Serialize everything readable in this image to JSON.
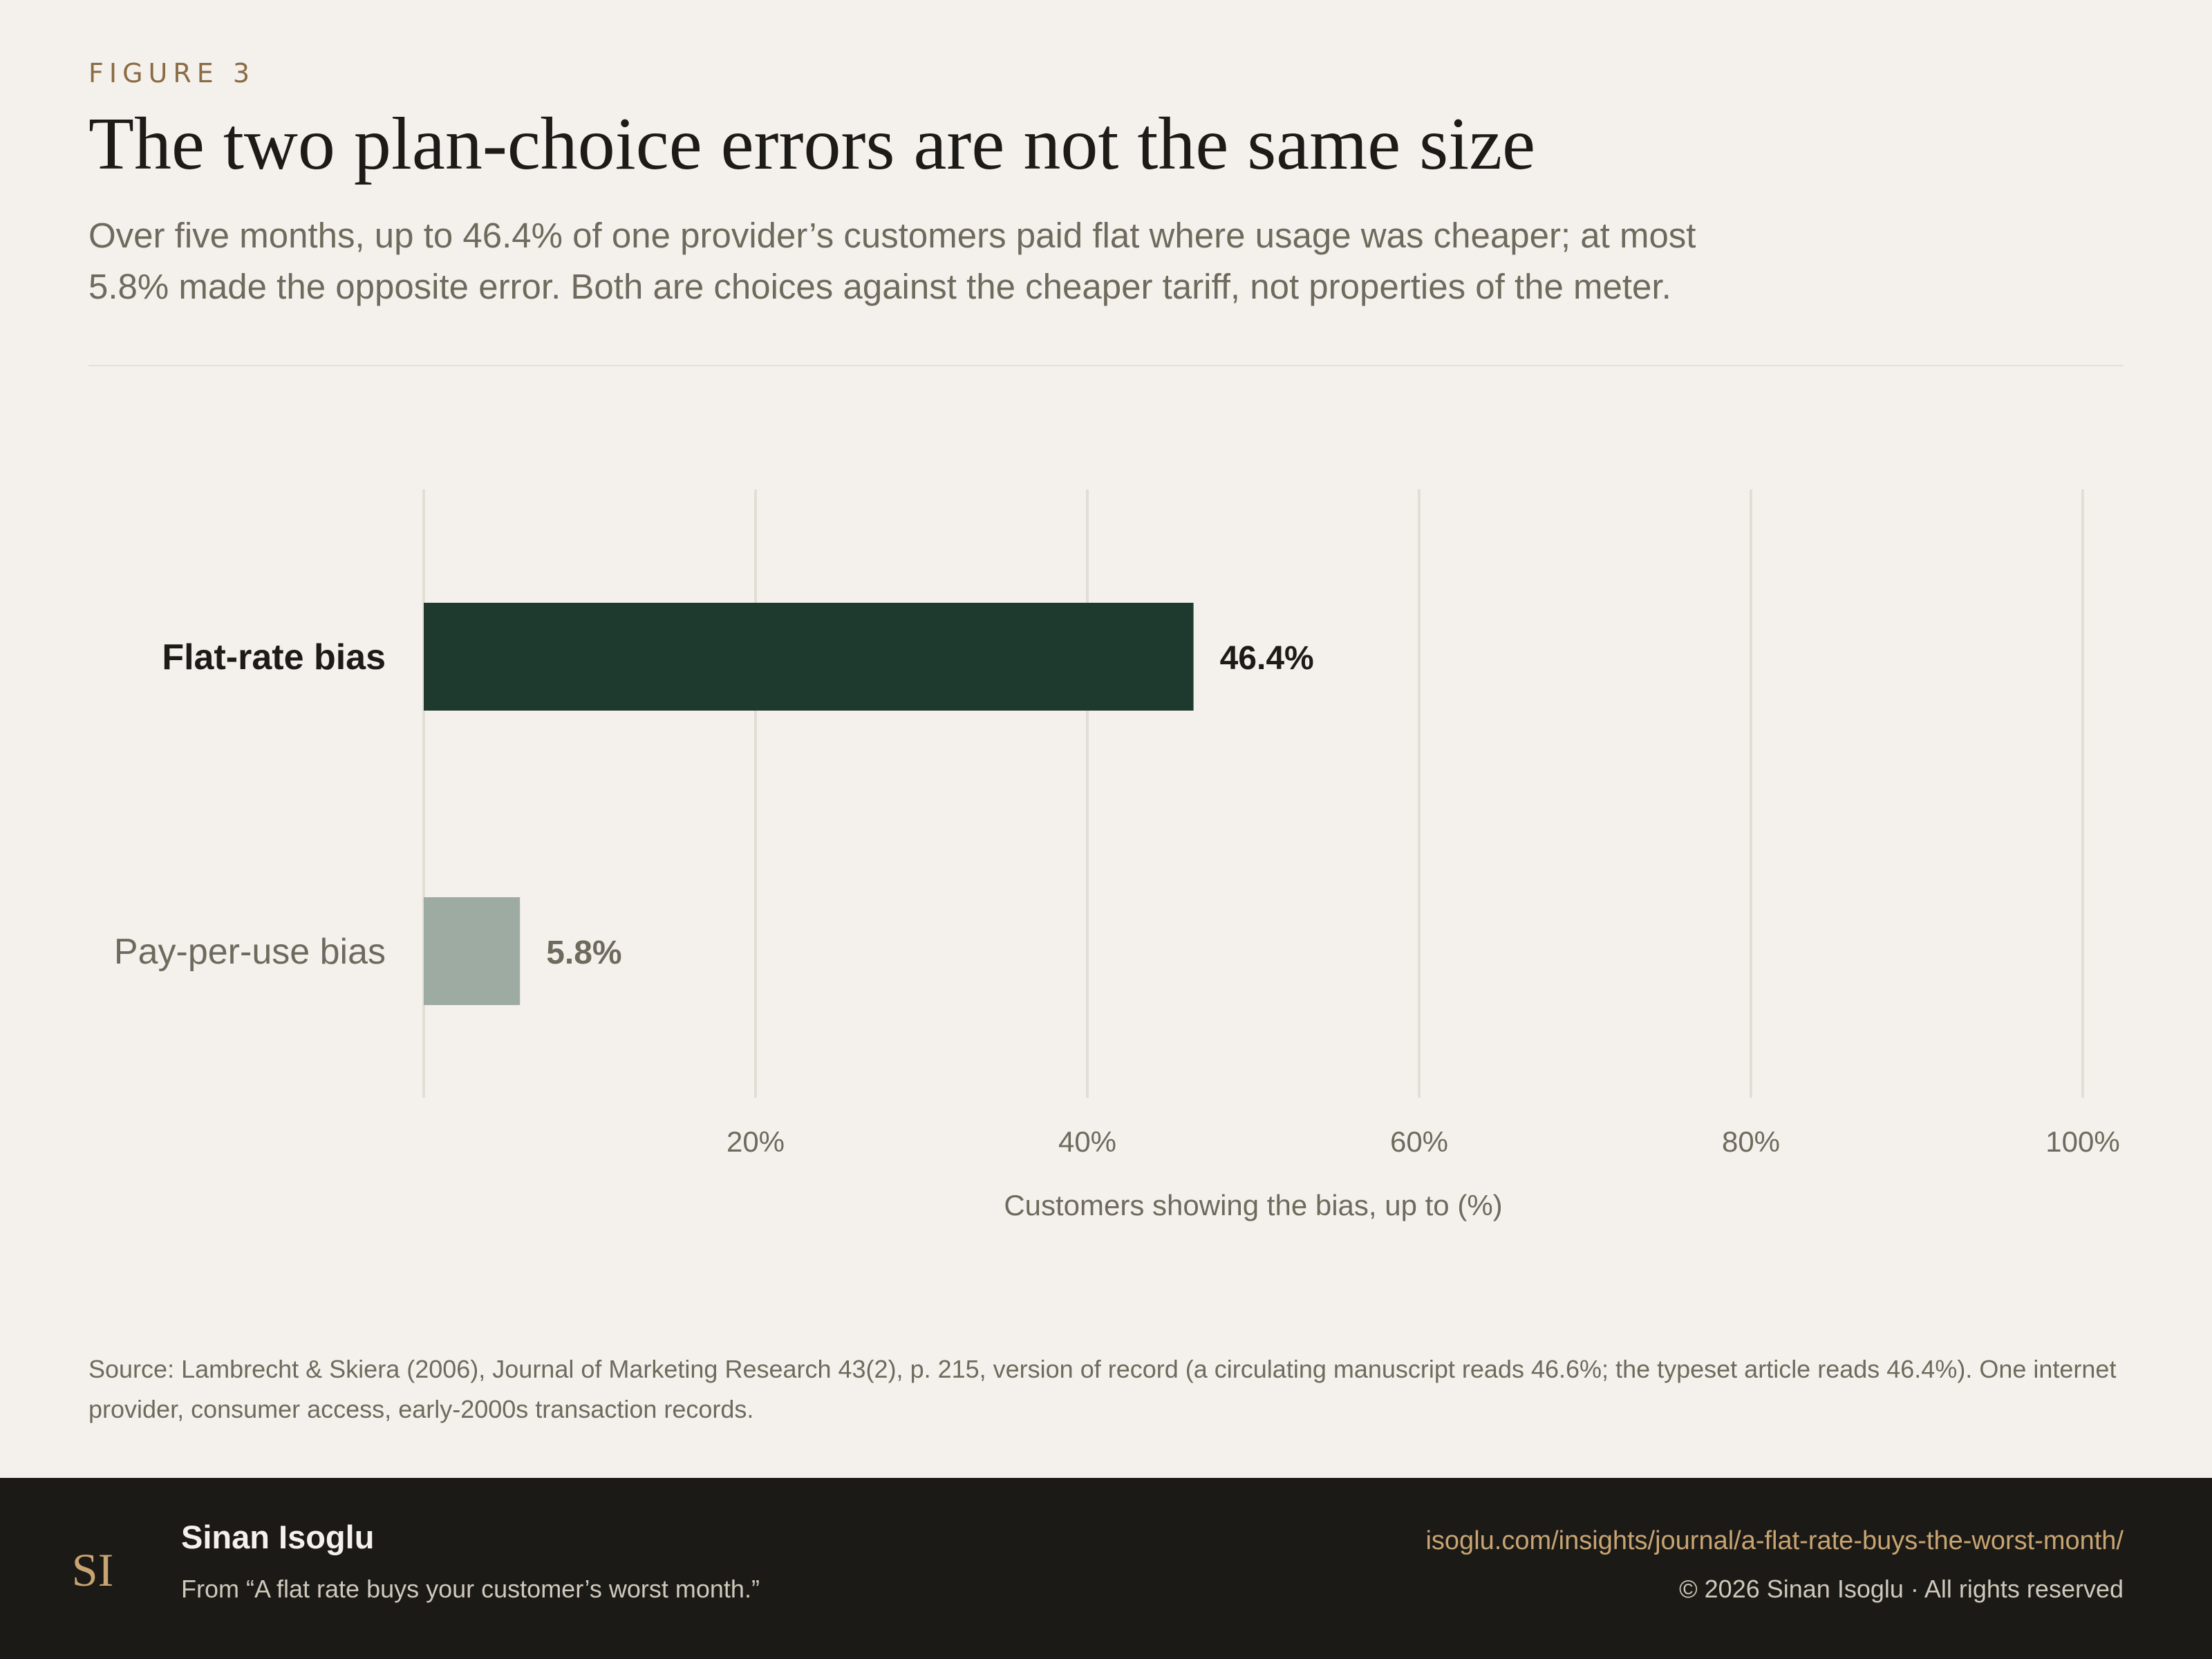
{
  "header": {
    "eyebrow": "FIGURE 3",
    "title": "The two plan-choice errors are not the same size",
    "subtitle": "Over five months, up to 46.4% of one provider’s customers paid flat where usage was cheaper; at most 5.8% made the opposite error. Both are choices against the cheaper tariff, not properties of the meter."
  },
  "chart_data": {
    "type": "bar",
    "orientation": "horizontal",
    "categories": [
      "Flat-rate bias",
      "Pay-per-use bias"
    ],
    "values": [
      46.4,
      5.8
    ],
    "value_labels": [
      "46.4%",
      "5.8%"
    ],
    "bar_colors": [
      "#1e3a2f",
      "#9eaba2"
    ],
    "xlabel": "Customers showing the bias, up to (%)",
    "xlim": [
      0,
      100
    ],
    "ticks": [
      20,
      40,
      60,
      80,
      100
    ],
    "tick_labels": [
      "20%",
      "40%",
      "60%",
      "80%",
      "100%"
    ],
    "grid": true
  },
  "source": "Source: Lambrecht & Skiera (2006), Journal of Marketing Research 43(2), p. 215, version of record (a circulating manuscript reads 46.6%; the typeset article reads 46.4%). One internet provider, consumer access, early-2000s transaction records.",
  "footer": {
    "logo_text": "SI",
    "author": "Sinan Isoglu",
    "from": "From “A flat rate buys your customer’s worst month.”",
    "url": "isoglu.com/insights/journal/a-flat-rate-buys-the-worst-month/",
    "copyright": "© 2026 Sinan Isoglu · All rights reserved"
  },
  "colors": {
    "accent": "#8a6b43",
    "primary_bar": "#1e3a2f",
    "secondary_bar": "#9eaba2",
    "footer_bg": "#1c1a16",
    "link": "#c7a472"
  }
}
